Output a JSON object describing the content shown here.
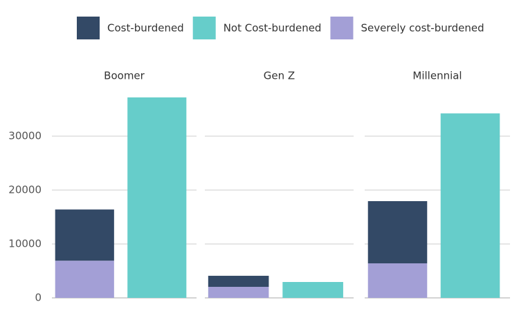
{
  "chart_data": {
    "type": "bar",
    "stacked": true,
    "categories": [
      "Boomer",
      "Gen Z",
      "Millennial"
    ],
    "series": [
      {
        "name": "Cost-burdened",
        "color": "#334966",
        "stack": true,
        "values": [
          9500,
          2050,
          11540
        ]
      },
      {
        "name": "Not Cost-burdened",
        "color": "#66cdca",
        "stack": false,
        "values": [
          37200,
          2950,
          34230
        ]
      },
      {
        "name": "Severely cost-burdened",
        "color": "#a39fd6",
        "stack": true,
        "values": [
          6900,
          2050,
          6410
        ]
      }
    ],
    "ylim": [
      0,
      38600
    ],
    "yticks": [
      0,
      10000,
      20000,
      30000
    ],
    "grid": true,
    "legend": "top"
  }
}
